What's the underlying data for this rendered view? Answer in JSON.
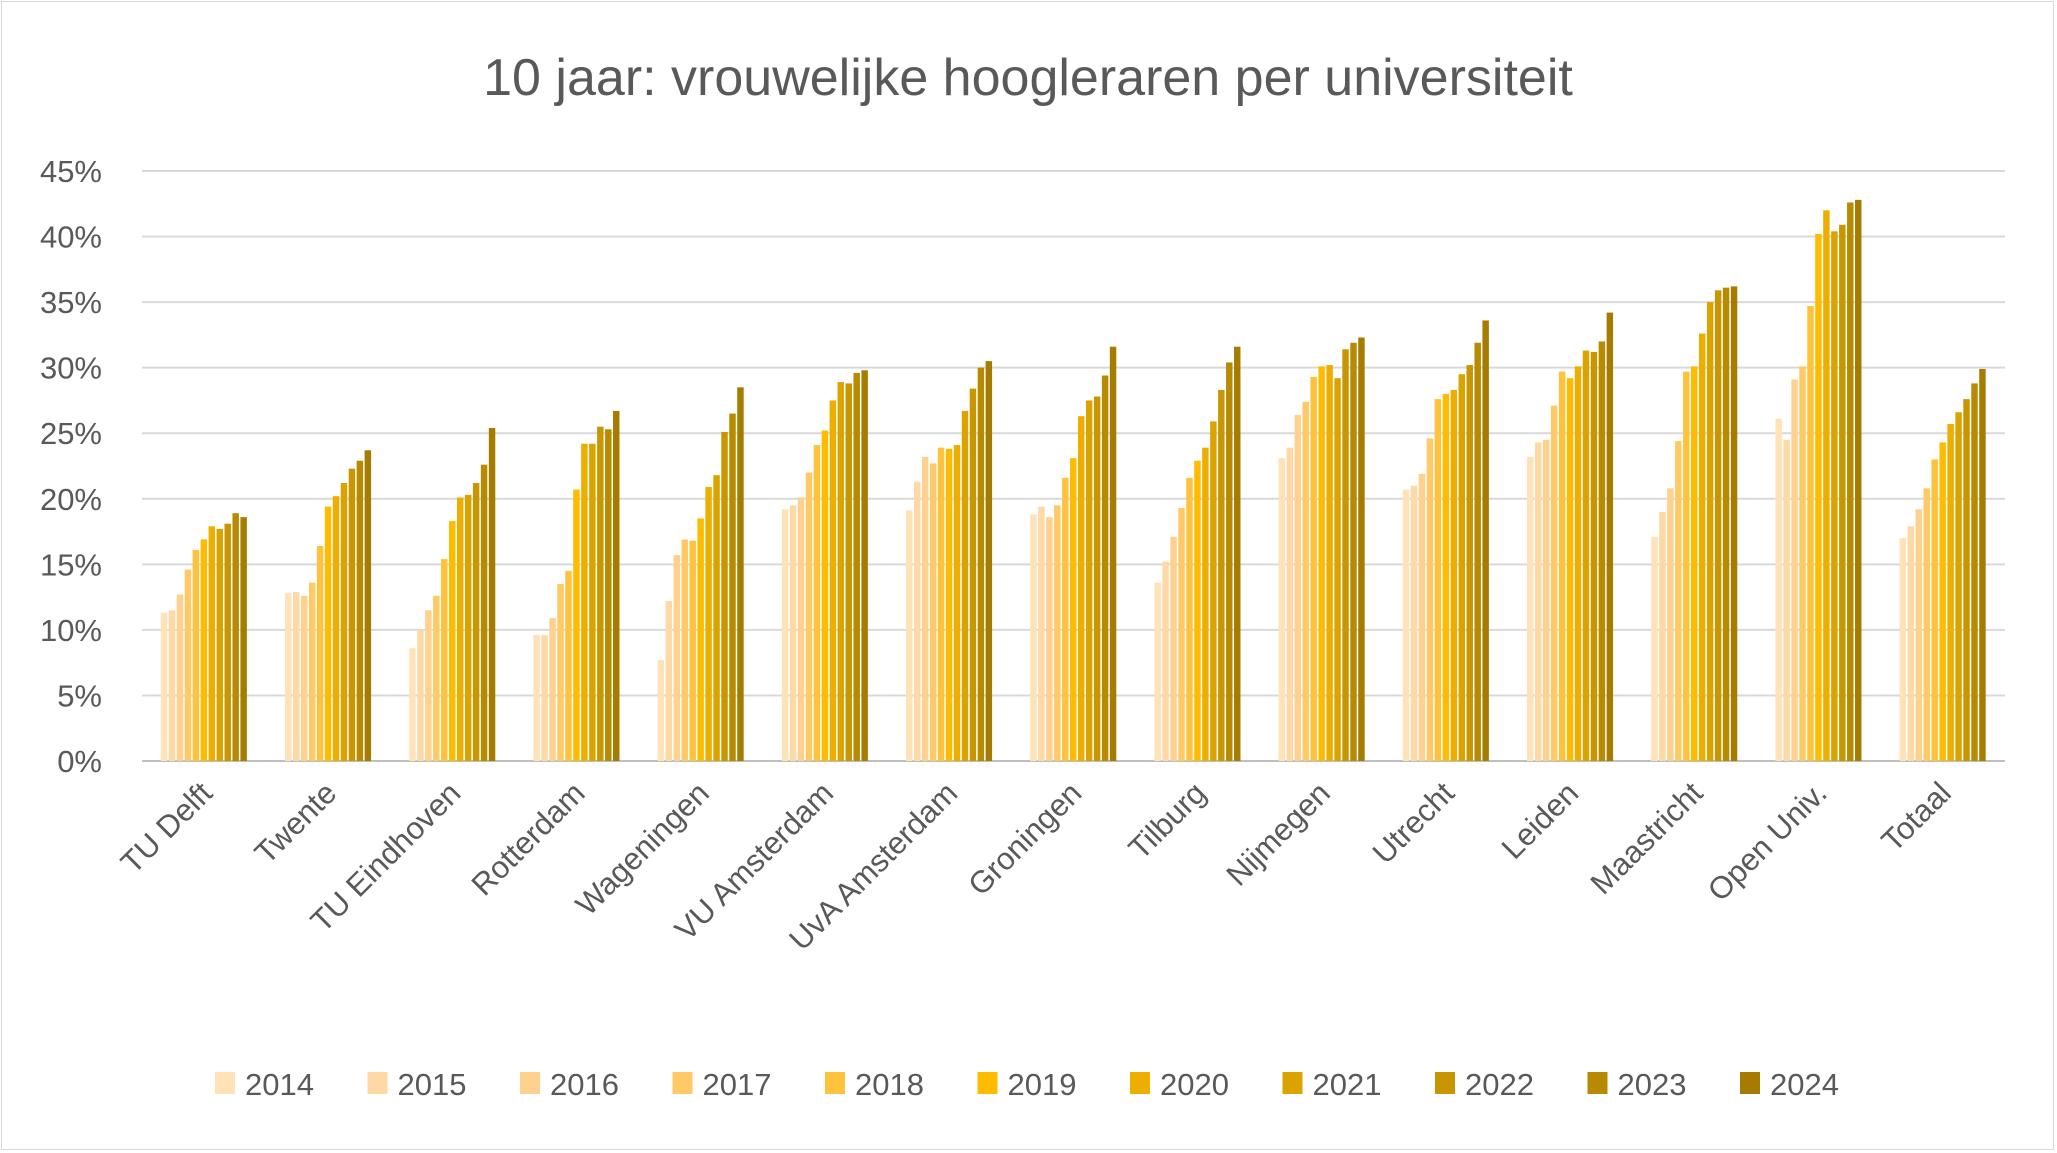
{
  "chart_data": {
    "type": "bar",
    "title": "10 jaar: vrouwelijke hoogleraren per universiteit",
    "xlabel": "",
    "ylabel": "",
    "ylim": [
      0,
      45
    ],
    "yticks": [
      "0%",
      "5%",
      "10%",
      "15%",
      "20%",
      "25%",
      "30%",
      "35%",
      "40%",
      "45%"
    ],
    "yunit": "%",
    "grid": true,
    "legend_placement": "bottom",
    "categories": [
      "TU Delft",
      "Twente",
      "TU Eindhoven",
      "Rotterdam",
      "Wageningen",
      "VU Amsterdam",
      "UvA Amsterdam",
      "Groningen",
      "Tilburg",
      "Nijmegen",
      "Utrecht",
      "Leiden",
      "Maastricht",
      "Open Univ.",
      "Totaal"
    ],
    "series": [
      {
        "name": "2014",
        "color": "#FFE2B8",
        "values": [
          11.3,
          12.8,
          8.6,
          9.6,
          7.7,
          19.2,
          19.1,
          18.8,
          13.6,
          23.1,
          20.7,
          23.2,
          17.1,
          26.1,
          17.0
        ]
      },
      {
        "name": "2015",
        "color": "#FFD9A5",
        "values": [
          11.5,
          12.9,
          10.0,
          9.6,
          12.2,
          19.5,
          21.3,
          19.4,
          15.2,
          23.9,
          21.0,
          24.3,
          19.0,
          24.5,
          17.9
        ]
      },
      {
        "name": "2016",
        "color": "#FFD18E",
        "values": [
          12.7,
          12.6,
          11.5,
          10.9,
          15.7,
          20.1,
          23.2,
          18.6,
          17.1,
          26.4,
          21.9,
          24.5,
          20.8,
          29.1,
          19.2
        ]
      },
      {
        "name": "2017",
        "color": "#FFC966",
        "values": [
          14.6,
          13.6,
          12.6,
          13.5,
          16.9,
          22.0,
          22.7,
          19.5,
          19.3,
          27.4,
          24.6,
          27.1,
          24.4,
          30.1,
          20.8
        ]
      },
      {
        "name": "2018",
        "color": "#FFC23C",
        "values": [
          16.1,
          16.4,
          15.4,
          14.5,
          16.8,
          24.1,
          23.9,
          21.6,
          21.6,
          29.3,
          27.6,
          29.7,
          29.7,
          34.7,
          23.0
        ]
      },
      {
        "name": "2019",
        "color": "#FFBB00",
        "values": [
          16.9,
          19.4,
          18.3,
          20.7,
          18.5,
          25.2,
          23.8,
          23.1,
          22.9,
          30.1,
          28.0,
          29.2,
          30.1,
          40.2,
          24.3
        ]
      },
      {
        "name": "2020",
        "color": "#EDAE00",
        "values": [
          17.9,
          20.2,
          20.1,
          24.2,
          20.9,
          27.5,
          24.1,
          26.3,
          23.9,
          30.2,
          28.3,
          30.1,
          32.6,
          42.0,
          25.7
        ]
      },
      {
        "name": "2021",
        "color": "#DBA300",
        "values": [
          17.7,
          21.2,
          20.3,
          24.2,
          21.8,
          28.9,
          26.7,
          27.5,
          25.9,
          29.2,
          29.5,
          31.3,
          35.0,
          40.4,
          26.6
        ]
      },
      {
        "name": "2022",
        "color": "#C89600",
        "values": [
          18.1,
          22.3,
          21.2,
          25.5,
          25.1,
          28.8,
          28.4,
          27.8,
          28.3,
          31.4,
          30.2,
          31.2,
          35.9,
          40.9,
          27.6
        ]
      },
      {
        "name": "2023",
        "color": "#B88A00",
        "values": [
          18.9,
          22.9,
          22.6,
          25.3,
          26.5,
          29.6,
          30.0,
          29.4,
          30.4,
          31.9,
          31.9,
          32.0,
          36.1,
          42.6,
          28.8
        ]
      },
      {
        "name": "2024",
        "color": "#A67C00",
        "values": [
          18.6,
          23.7,
          25.4,
          26.7,
          28.5,
          29.8,
          30.5,
          31.6,
          31.6,
          32.3,
          33.6,
          34.2,
          36.2,
          42.8,
          29.9
        ]
      }
    ]
  }
}
